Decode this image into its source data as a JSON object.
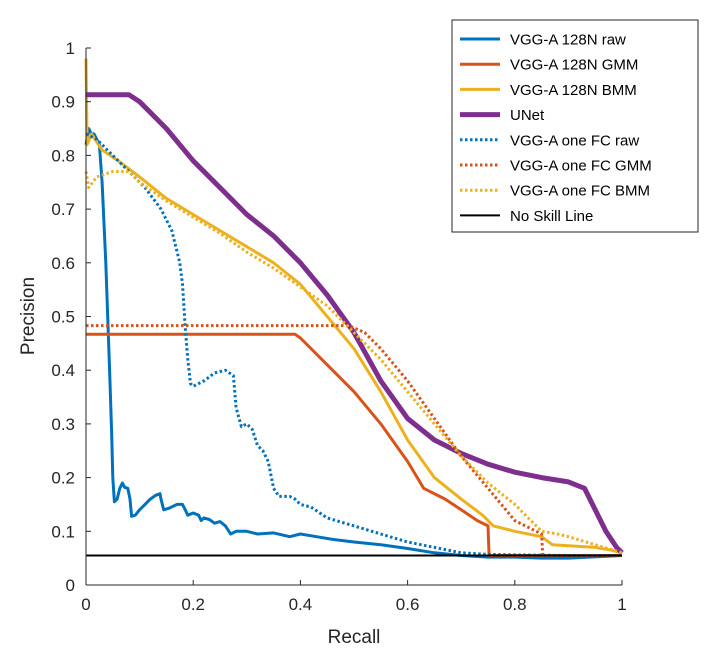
{
  "chart_data": {
    "type": "line",
    "title": "",
    "xlabel": "Recall",
    "ylabel": "Precision",
    "xlim": [
      0,
      1
    ],
    "ylim": [
      0,
      1
    ],
    "grid": false,
    "legend_position": "top-right",
    "xticks": [
      0,
      0.2,
      0.4,
      0.6,
      0.8,
      1
    ],
    "yticks": [
      0,
      0.1,
      0.2,
      0.3,
      0.4,
      0.5,
      0.6,
      0.7,
      0.8,
      0.9,
      1
    ],
    "xtick_labels": [
      "0",
      "0.2",
      "0.4",
      "0.6",
      "0.8",
      "1"
    ],
    "ytick_labels": [
      "0",
      "0.1",
      "0.2",
      "0.3",
      "0.4",
      "0.5",
      "0.6",
      "0.7",
      "0.8",
      "0.9",
      "1"
    ],
    "series": [
      {
        "name": "VGG-A 128N raw",
        "color": "#0072BD",
        "style": "solid",
        "width": 3,
        "points": [
          [
            0.0,
            0.82
          ],
          [
            0.005,
            0.85
          ],
          [
            0.01,
            0.84
          ],
          [
            0.015,
            0.84
          ],
          [
            0.025,
            0.82
          ],
          [
            0.03,
            0.75
          ],
          [
            0.037,
            0.6
          ],
          [
            0.044,
            0.4
          ],
          [
            0.048,
            0.28
          ],
          [
            0.05,
            0.2
          ],
          [
            0.053,
            0.155
          ],
          [
            0.058,
            0.16
          ],
          [
            0.063,
            0.18
          ],
          [
            0.068,
            0.19
          ],
          [
            0.072,
            0.182
          ],
          [
            0.078,
            0.18
          ],
          [
            0.082,
            0.16
          ],
          [
            0.085,
            0.128
          ],
          [
            0.092,
            0.13
          ],
          [
            0.1,
            0.14
          ],
          [
            0.11,
            0.15
          ],
          [
            0.12,
            0.16
          ],
          [
            0.13,
            0.167
          ],
          [
            0.138,
            0.17
          ],
          [
            0.14,
            0.16
          ],
          [
            0.145,
            0.14
          ],
          [
            0.155,
            0.143
          ],
          [
            0.17,
            0.15
          ],
          [
            0.18,
            0.15
          ],
          [
            0.185,
            0.14
          ],
          [
            0.19,
            0.13
          ],
          [
            0.2,
            0.134
          ],
          [
            0.21,
            0.13
          ],
          [
            0.215,
            0.12
          ],
          [
            0.22,
            0.125
          ],
          [
            0.23,
            0.122
          ],
          [
            0.24,
            0.115
          ],
          [
            0.25,
            0.118
          ],
          [
            0.26,
            0.11
          ],
          [
            0.27,
            0.095
          ],
          [
            0.28,
            0.1
          ],
          [
            0.3,
            0.1
          ],
          [
            0.32,
            0.095
          ],
          [
            0.35,
            0.097
          ],
          [
            0.38,
            0.09
          ],
          [
            0.4,
            0.095
          ],
          [
            0.43,
            0.09
          ],
          [
            0.46,
            0.085
          ],
          [
            0.5,
            0.08
          ],
          [
            0.55,
            0.075
          ],
          [
            0.6,
            0.068
          ],
          [
            0.65,
            0.06
          ],
          [
            0.7,
            0.055
          ],
          [
            0.75,
            0.052
          ],
          [
            0.8,
            0.052
          ],
          [
            0.85,
            0.05
          ],
          [
            0.9,
            0.05
          ],
          [
            1.0,
            0.055
          ]
        ]
      },
      {
        "name": "VGG-A 128N GMM",
        "color": "#D95319",
        "style": "solid",
        "width": 3,
        "points": [
          [
            0.0,
            0.467
          ],
          [
            0.39,
            0.467
          ],
          [
            0.4,
            0.46
          ],
          [
            0.45,
            0.41
          ],
          [
            0.5,
            0.36
          ],
          [
            0.55,
            0.3
          ],
          [
            0.6,
            0.23
          ],
          [
            0.63,
            0.18
          ],
          [
            0.67,
            0.16
          ],
          [
            0.7,
            0.14
          ],
          [
            0.73,
            0.12
          ],
          [
            0.75,
            0.11
          ],
          [
            0.752,
            0.055
          ],
          [
            0.8,
            0.055
          ],
          [
            0.9,
            0.055
          ],
          [
            1.0,
            0.055
          ]
        ]
      },
      {
        "name": "VGG-A 128N BMM",
        "color": "#EDB120",
        "style": "solid",
        "width": 3,
        "points": [
          [
            0.0,
            0.98
          ],
          [
            0.002,
            0.82
          ],
          [
            0.01,
            0.84
          ],
          [
            0.03,
            0.81
          ],
          [
            0.06,
            0.79
          ],
          [
            0.1,
            0.76
          ],
          [
            0.15,
            0.72
          ],
          [
            0.2,
            0.69
          ],
          [
            0.25,
            0.66
          ],
          [
            0.3,
            0.63
          ],
          [
            0.35,
            0.6
          ],
          [
            0.4,
            0.56
          ],
          [
            0.45,
            0.5
          ],
          [
            0.5,
            0.44
          ],
          [
            0.55,
            0.36
          ],
          [
            0.6,
            0.27
          ],
          [
            0.65,
            0.2
          ],
          [
            0.7,
            0.16
          ],
          [
            0.74,
            0.13
          ],
          [
            0.76,
            0.11
          ],
          [
            0.8,
            0.1
          ],
          [
            0.85,
            0.09
          ],
          [
            0.87,
            0.075
          ],
          [
            0.9,
            0.073
          ],
          [
            0.95,
            0.07
          ],
          [
            0.98,
            0.065
          ],
          [
            1.0,
            0.06
          ]
        ]
      },
      {
        "name": "UNet",
        "color": "#7E2F8E",
        "style": "solid",
        "width": 5,
        "points": [
          [
            0.0,
            0.913
          ],
          [
            0.08,
            0.913
          ],
          [
            0.1,
            0.9
          ],
          [
            0.15,
            0.85
          ],
          [
            0.2,
            0.79
          ],
          [
            0.25,
            0.74
          ],
          [
            0.3,
            0.69
          ],
          [
            0.35,
            0.65
          ],
          [
            0.4,
            0.6
          ],
          [
            0.45,
            0.54
          ],
          [
            0.5,
            0.47
          ],
          [
            0.55,
            0.38
          ],
          [
            0.6,
            0.31
          ],
          [
            0.65,
            0.27
          ],
          [
            0.7,
            0.245
          ],
          [
            0.75,
            0.225
          ],
          [
            0.8,
            0.21
          ],
          [
            0.85,
            0.2
          ],
          [
            0.9,
            0.192
          ],
          [
            0.93,
            0.18
          ],
          [
            0.95,
            0.14
          ],
          [
            0.97,
            0.1
          ],
          [
            0.99,
            0.07
          ],
          [
            1.0,
            0.06
          ]
        ]
      },
      {
        "name": "VGG-A one FC raw",
        "color": "#0072BD",
        "style": "dotted",
        "width": 3,
        "points": [
          [
            0.0,
            0.84
          ],
          [
            0.02,
            0.83
          ],
          [
            0.05,
            0.8
          ],
          [
            0.08,
            0.77
          ],
          [
            0.11,
            0.74
          ],
          [
            0.14,
            0.7
          ],
          [
            0.16,
            0.66
          ],
          [
            0.175,
            0.6
          ],
          [
            0.18,
            0.56
          ],
          [
            0.185,
            0.48
          ],
          [
            0.19,
            0.42
          ],
          [
            0.195,
            0.375
          ],
          [
            0.2,
            0.37
          ],
          [
            0.22,
            0.38
          ],
          [
            0.24,
            0.395
          ],
          [
            0.26,
            0.4
          ],
          [
            0.275,
            0.39
          ],
          [
            0.28,
            0.33
          ],
          [
            0.29,
            0.295
          ],
          [
            0.3,
            0.3
          ],
          [
            0.31,
            0.29
          ],
          [
            0.32,
            0.26
          ],
          [
            0.33,
            0.25
          ],
          [
            0.34,
            0.23
          ],
          [
            0.35,
            0.18
          ],
          [
            0.36,
            0.165
          ],
          [
            0.38,
            0.165
          ],
          [
            0.39,
            0.16
          ],
          [
            0.4,
            0.15
          ],
          [
            0.42,
            0.145
          ],
          [
            0.45,
            0.125
          ],
          [
            0.5,
            0.11
          ],
          [
            0.55,
            0.095
          ],
          [
            0.6,
            0.08
          ],
          [
            0.65,
            0.07
          ],
          [
            0.7,
            0.06
          ],
          [
            0.75,
            0.057
          ],
          [
            0.8,
            0.056
          ],
          [
            0.9,
            0.055
          ],
          [
            1.0,
            0.055
          ]
        ]
      },
      {
        "name": "VGG-A one FC GMM",
        "color": "#D95319",
        "style": "dotted",
        "width": 3,
        "points": [
          [
            0.0,
            0.483
          ],
          [
            0.49,
            0.483
          ],
          [
            0.52,
            0.47
          ],
          [
            0.55,
            0.44
          ],
          [
            0.6,
            0.38
          ],
          [
            0.65,
            0.31
          ],
          [
            0.7,
            0.24
          ],
          [
            0.75,
            0.18
          ],
          [
            0.8,
            0.12
          ],
          [
            0.84,
            0.1
          ],
          [
            0.85,
            0.095
          ],
          [
            0.852,
            0.055
          ],
          [
            0.9,
            0.055
          ],
          [
            1.0,
            0.055
          ]
        ]
      },
      {
        "name": "VGG-A one FC BMM",
        "color": "#EDB120",
        "style": "dotted",
        "width": 3,
        "points": [
          [
            0.0,
            0.77
          ],
          [
            0.005,
            0.74
          ],
          [
            0.02,
            0.76
          ],
          [
            0.05,
            0.77
          ],
          [
            0.08,
            0.77
          ],
          [
            0.1,
            0.75
          ],
          [
            0.15,
            0.715
          ],
          [
            0.2,
            0.685
          ],
          [
            0.25,
            0.655
          ],
          [
            0.3,
            0.62
          ],
          [
            0.35,
            0.59
          ],
          [
            0.4,
            0.555
          ],
          [
            0.45,
            0.52
          ],
          [
            0.5,
            0.47
          ],
          [
            0.55,
            0.42
          ],
          [
            0.6,
            0.36
          ],
          [
            0.65,
            0.3
          ],
          [
            0.7,
            0.24
          ],
          [
            0.75,
            0.19
          ],
          [
            0.8,
            0.15
          ],
          [
            0.83,
            0.12
          ],
          [
            0.85,
            0.1
          ],
          [
            0.88,
            0.095
          ],
          [
            0.9,
            0.09
          ],
          [
            0.95,
            0.075
          ],
          [
            1.0,
            0.06
          ]
        ]
      },
      {
        "name": "No Skill Line",
        "color": "#000000",
        "style": "solid",
        "width": 2,
        "points": [
          [
            0.0,
            0.055
          ],
          [
            1.0,
            0.055
          ]
        ]
      }
    ]
  }
}
